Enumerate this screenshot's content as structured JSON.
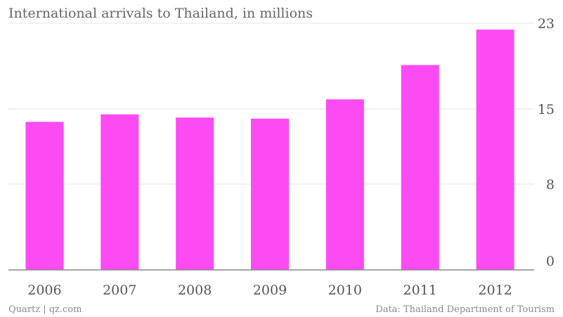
{
  "chart_data": {
    "type": "bar",
    "title": "International arrivals to Thailand, in millions",
    "categories": [
      "2006",
      "2007",
      "2008",
      "2009",
      "2010",
      "2011",
      "2012"
    ],
    "values": [
      13.8,
      14.5,
      14.2,
      14.1,
      15.9,
      19.1,
      22.4
    ],
    "ylim": [
      0,
      23
    ],
    "yticks": [
      0,
      8,
      15,
      23
    ],
    "ytick_labels": [
      "0",
      "8",
      "15",
      "23"
    ],
    "y_axis_side": "right",
    "grid": true,
    "bar_color": "#fd4bf3"
  },
  "footer": {
    "source_left": "Quartz | qz.com",
    "source_right": "Data: Thailand Department of Tourism"
  }
}
